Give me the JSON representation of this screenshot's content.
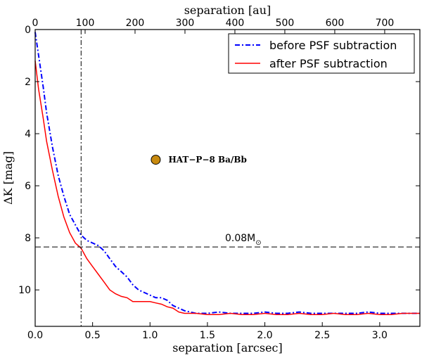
{
  "chart_data": {
    "type": "line",
    "xlabel": "separation [arcsec]",
    "x2label": "separation [au]",
    "ylabel": "ΔK [mag]",
    "xlim": [
      0,
      3.35
    ],
    "ylim": [
      11.4,
      0
    ],
    "au_per_arcsec": 230,
    "x_ticks": [
      0.0,
      0.5,
      1.0,
      1.5,
      2.0,
      2.5,
      3.0
    ],
    "x_tick_labels": [
      "0.0",
      "0.5",
      "1.0",
      "1.5",
      "2.0",
      "2.5",
      "3.0"
    ],
    "x2_ticks": [
      0,
      100,
      200,
      300,
      400,
      500,
      600,
      700
    ],
    "x2_tick_labels": [
      "0",
      "100",
      "200",
      "300",
      "400",
      "500",
      "600",
      "700"
    ],
    "y_ticks": [
      0,
      2,
      4,
      6,
      8,
      10
    ],
    "y_tick_labels": [
      "0",
      "2",
      "4",
      "6",
      "8",
      "10"
    ],
    "series": [
      {
        "name": "before PSF subtraction",
        "color": "#0000ff",
        "style": "dashdot",
        "x": [
          0.0,
          0.03,
          0.07,
          0.1,
          0.15,
          0.2,
          0.25,
          0.3,
          0.35,
          0.4,
          0.45,
          0.5,
          0.55,
          0.6,
          0.65,
          0.7,
          0.75,
          0.8,
          0.85,
          0.9,
          0.95,
          1.0,
          1.05,
          1.1,
          1.15,
          1.2,
          1.3,
          1.4,
          1.5,
          1.6,
          1.7,
          1.8,
          1.9,
          2.0,
          2.1,
          2.2,
          2.3,
          2.4,
          2.5,
          2.6,
          2.7,
          2.8,
          2.9,
          3.0,
          3.1,
          3.2,
          3.35
        ],
        "values": [
          0.1,
          1.0,
          2.2,
          3.2,
          4.5,
          5.6,
          6.4,
          7.1,
          7.5,
          7.9,
          8.1,
          8.2,
          8.3,
          8.5,
          8.8,
          9.1,
          9.3,
          9.5,
          9.8,
          10.0,
          10.1,
          10.2,
          10.3,
          10.3,
          10.4,
          10.6,
          10.8,
          10.9,
          10.9,
          10.85,
          10.9,
          10.9,
          10.9,
          10.85,
          10.9,
          10.9,
          10.85,
          10.9,
          10.9,
          10.9,
          10.9,
          10.9,
          10.85,
          10.9,
          10.9,
          10.9,
          10.9
        ]
      },
      {
        "name": "after PSF subtraction",
        "color": "#ff0000",
        "style": "solid",
        "x": [
          0.0,
          0.03,
          0.07,
          0.1,
          0.15,
          0.2,
          0.25,
          0.3,
          0.35,
          0.4,
          0.45,
          0.5,
          0.55,
          0.6,
          0.65,
          0.7,
          0.75,
          0.8,
          0.85,
          0.9,
          0.95,
          1.0,
          1.05,
          1.1,
          1.15,
          1.2,
          1.25,
          1.3,
          1.4,
          1.5,
          1.6,
          1.7,
          1.8,
          1.9,
          2.0,
          2.1,
          2.2,
          2.3,
          2.4,
          2.5,
          2.6,
          2.7,
          2.8,
          2.9,
          3.0,
          3.1,
          3.2,
          3.35
        ],
        "values": [
          1.2,
          2.3,
          3.4,
          4.3,
          5.4,
          6.4,
          7.2,
          7.8,
          8.2,
          8.4,
          8.8,
          9.1,
          9.4,
          9.7,
          10.0,
          10.15,
          10.25,
          10.3,
          10.45,
          10.45,
          10.45,
          10.45,
          10.5,
          10.55,
          10.65,
          10.7,
          10.85,
          10.9,
          10.9,
          10.95,
          10.95,
          10.9,
          10.95,
          10.95,
          10.9,
          10.95,
          10.95,
          10.9,
          10.95,
          10.95,
          10.9,
          10.95,
          10.95,
          10.9,
          10.95,
          10.95,
          10.9,
          10.9
        ]
      }
    ],
    "reference_lines": [
      {
        "orientation": "horizontal",
        "value": 8.35,
        "label": "0.08M",
        "label_sub": "⊙",
        "style": "dashed"
      },
      {
        "orientation": "vertical",
        "value": 0.4,
        "style": "dashdot"
      }
    ],
    "annotations": [
      {
        "x": 1.05,
        "y": 5.0,
        "label": "HAT−P−8 Ba/Bb",
        "marker_color": "#c88a0f"
      }
    ],
    "legend": "top-right"
  }
}
